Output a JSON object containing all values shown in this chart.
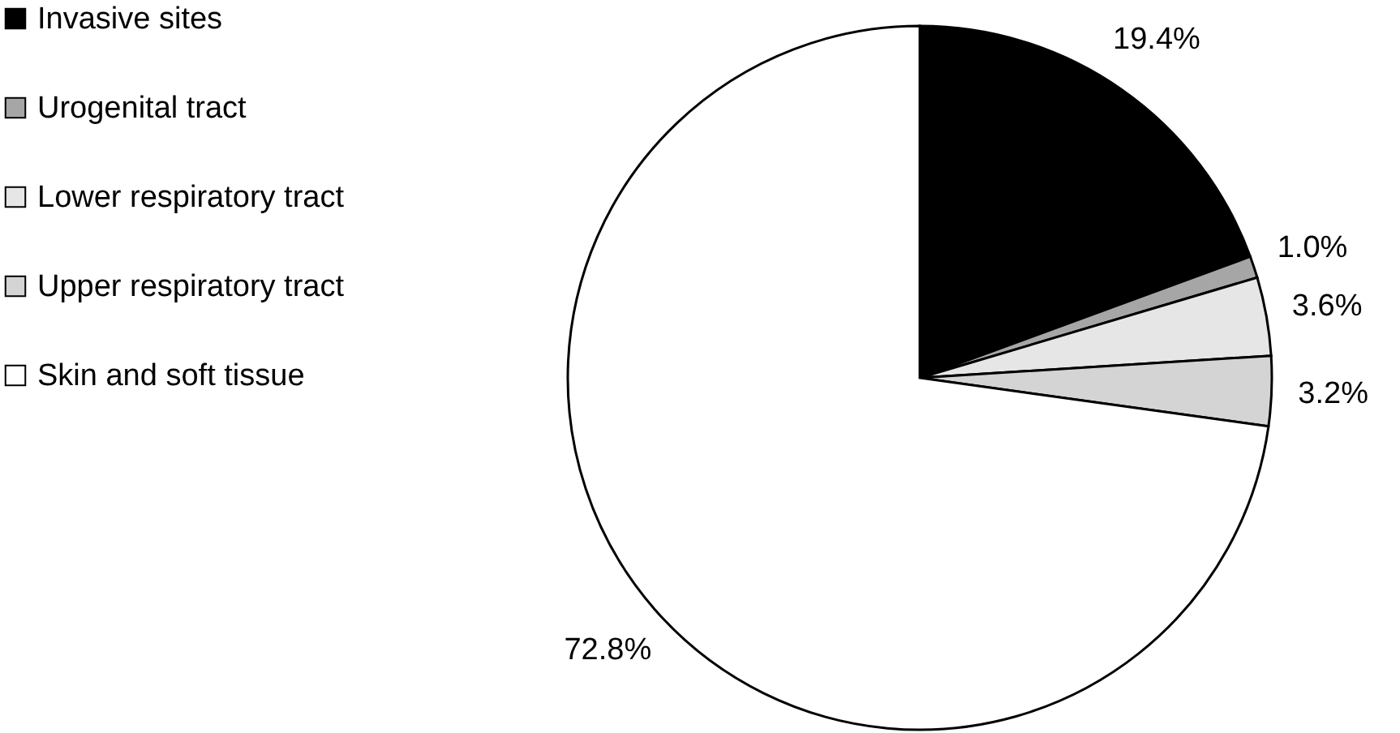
{
  "chart_data": {
    "type": "pie",
    "categories": [
      "Invasive sites",
      "Urogenital tract",
      "Lower respiratory tract",
      "Upper respiratory tract",
      "Skin and soft tissue"
    ],
    "values": [
      19.4,
      1.0,
      3.6,
      3.2,
      72.8
    ],
    "colors": [
      "#000000",
      "#a6a6a6",
      "#e6e6e6",
      "#d4d4d4",
      "#ffffff"
    ],
    "value_labels": [
      "19.4%",
      "1.0%",
      "3.6%",
      "3.2%",
      "72.8%"
    ],
    "legend": "top left"
  }
}
